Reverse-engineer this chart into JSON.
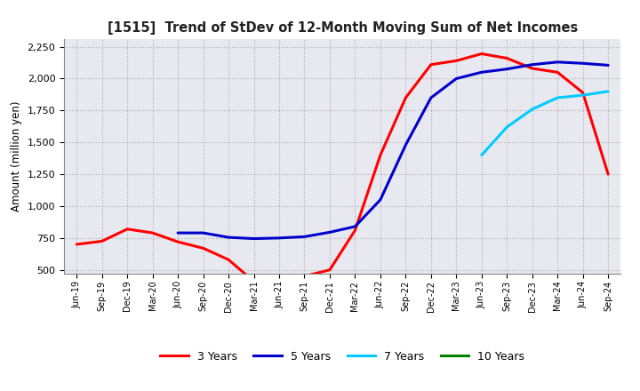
{
  "title": "[1515]  Trend of StDev of 12-Month Moving Sum of Net Incomes",
  "ylabel": "Amount (million yen)",
  "background_color": "#ffffff",
  "grid_color": "#aaaaaa",
  "ylim": [
    470,
    2310
  ],
  "yticks": [
    500,
    750,
    1000,
    1250,
    1500,
    1750,
    2000,
    2250
  ],
  "x_labels": [
    "Jun-19",
    "Sep-19",
    "Dec-19",
    "Mar-20",
    "Jun-20",
    "Sep-20",
    "Dec-20",
    "Mar-21",
    "Jun-21",
    "Sep-21",
    "Dec-21",
    "Mar-22",
    "Jun-22",
    "Sep-22",
    "Dec-22",
    "Mar-23",
    "Jun-23",
    "Sep-23",
    "Dec-23",
    "Mar-24",
    "Jun-24",
    "Sep-24"
  ],
  "series": {
    "3 Years": {
      "color": "#ff0000",
      "values": [
        700,
        725,
        820,
        790,
        720,
        670,
        580,
        410,
        400,
        450,
        500,
        810,
        1400,
        1850,
        2110,
        2140,
        2195,
        2160,
        2080,
        2050,
        1890,
        1250
      ]
    },
    "5 Years": {
      "color": "#0000cc",
      "values": [
        null,
        null,
        null,
        null,
        790,
        790,
        755,
        745,
        750,
        760,
        795,
        840,
        1050,
        1480,
        1850,
        2000,
        2050,
        2075,
        2110,
        2130,
        2120,
        2105
      ]
    },
    "7 Years": {
      "color": "#00ccff",
      "values": [
        null,
        null,
        null,
        null,
        null,
        null,
        null,
        null,
        null,
        null,
        null,
        null,
        null,
        null,
        null,
        null,
        1400,
        1620,
        1760,
        1850,
        1870,
        1900
      ]
    },
    "10 Years": {
      "color": "#008000",
      "values": [
        null,
        null,
        null,
        null,
        null,
        null,
        null,
        null,
        null,
        null,
        null,
        null,
        null,
        null,
        null,
        null,
        null,
        null,
        null,
        null,
        null,
        null
      ]
    }
  },
  "legend_labels": [
    "3 Years",
    "5 Years",
    "7 Years",
    "10 Years"
  ],
  "legend_colors": [
    "#ff0000",
    "#0000cc",
    "#00ccff",
    "#008000"
  ]
}
